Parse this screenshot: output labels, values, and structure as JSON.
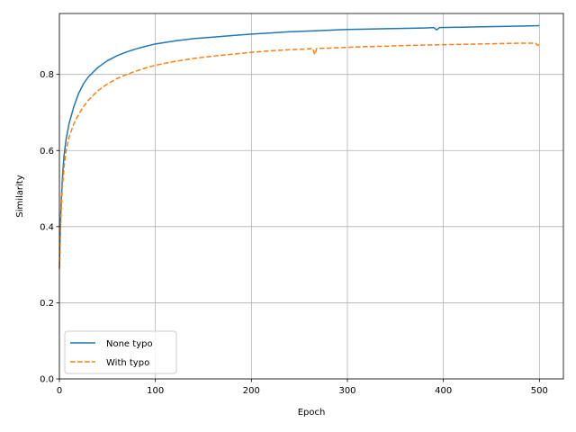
{
  "chart_data": {
    "type": "line",
    "xlabel": "Epoch",
    "ylabel": "Similarity",
    "xlim": [
      0,
      525
    ],
    "ylim": [
      0,
      0.96
    ],
    "xticks": [
      0,
      100,
      200,
      300,
      400,
      500
    ],
    "yticks": [
      0.0,
      0.2,
      0.4,
      0.6,
      0.8
    ],
    "xtick_labels": [
      "0",
      "100",
      "200",
      "300",
      "400",
      "500"
    ],
    "ytick_labels": [
      "0.0",
      "0.2",
      "0.4",
      "0.6",
      "0.8"
    ],
    "grid": true,
    "legend_position": "lower-left",
    "series": [
      {
        "name": "None typo",
        "color": "#1f77b4",
        "style": "solid",
        "points": [
          [
            0,
            0.29
          ],
          [
            1,
            0.4
          ],
          [
            2,
            0.47
          ],
          [
            3,
            0.52
          ],
          [
            4,
            0.56
          ],
          [
            5,
            0.59
          ],
          [
            7,
            0.63
          ],
          [
            10,
            0.67
          ],
          [
            15,
            0.715
          ],
          [
            20,
            0.75
          ],
          [
            25,
            0.775
          ],
          [
            30,
            0.793
          ],
          [
            40,
            0.818
          ],
          [
            50,
            0.836
          ],
          [
            60,
            0.849
          ],
          [
            70,
            0.859
          ],
          [
            80,
            0.867
          ],
          [
            90,
            0.874
          ],
          [
            100,
            0.88
          ],
          [
            120,
            0.888
          ],
          [
            140,
            0.894
          ],
          [
            160,
            0.898
          ],
          [
            180,
            0.902
          ],
          [
            200,
            0.906
          ],
          [
            220,
            0.909
          ],
          [
            240,
            0.912
          ],
          [
            260,
            0.914
          ],
          [
            280,
            0.916
          ],
          [
            300,
            0.918
          ],
          [
            320,
            0.919
          ],
          [
            340,
            0.92
          ],
          [
            360,
            0.921
          ],
          [
            380,
            0.922
          ],
          [
            390,
            0.923
          ],
          [
            393,
            0.917
          ],
          [
            396,
            0.923
          ],
          [
            420,
            0.924
          ],
          [
            440,
            0.925
          ],
          [
            460,
            0.926
          ],
          [
            480,
            0.927
          ],
          [
            500,
            0.928
          ]
        ]
      },
      {
        "name": "With typo",
        "color": "#ff7f0e",
        "style": "dashed",
        "points": [
          [
            0,
            0.29
          ],
          [
            1,
            0.38
          ],
          [
            2,
            0.45
          ],
          [
            3,
            0.5
          ],
          [
            4,
            0.53
          ],
          [
            5,
            0.56
          ],
          [
            7,
            0.6
          ],
          [
            10,
            0.635
          ],
          [
            15,
            0.67
          ],
          [
            20,
            0.695
          ],
          [
            25,
            0.715
          ],
          [
            30,
            0.732
          ],
          [
            40,
            0.757
          ],
          [
            50,
            0.775
          ],
          [
            60,
            0.789
          ],
          [
            70,
            0.8
          ],
          [
            80,
            0.809
          ],
          [
            90,
            0.817
          ],
          [
            100,
            0.824
          ],
          [
            120,
            0.834
          ],
          [
            140,
            0.842
          ],
          [
            160,
            0.848
          ],
          [
            180,
            0.853
          ],
          [
            200,
            0.858
          ],
          [
            220,
            0.862
          ],
          [
            240,
            0.865
          ],
          [
            260,
            0.867
          ],
          [
            264,
            0.868
          ],
          [
            266,
            0.852
          ],
          [
            268,
            0.868
          ],
          [
            280,
            0.869
          ],
          [
            300,
            0.871
          ],
          [
            320,
            0.873
          ],
          [
            340,
            0.874
          ],
          [
            360,
            0.876
          ],
          [
            380,
            0.877
          ],
          [
            400,
            0.878
          ],
          [
            420,
            0.879
          ],
          [
            440,
            0.88
          ],
          [
            460,
            0.881
          ],
          [
            480,
            0.882
          ],
          [
            496,
            0.882
          ],
          [
            498,
            0.876
          ],
          [
            500,
            0.879
          ]
        ]
      }
    ]
  }
}
